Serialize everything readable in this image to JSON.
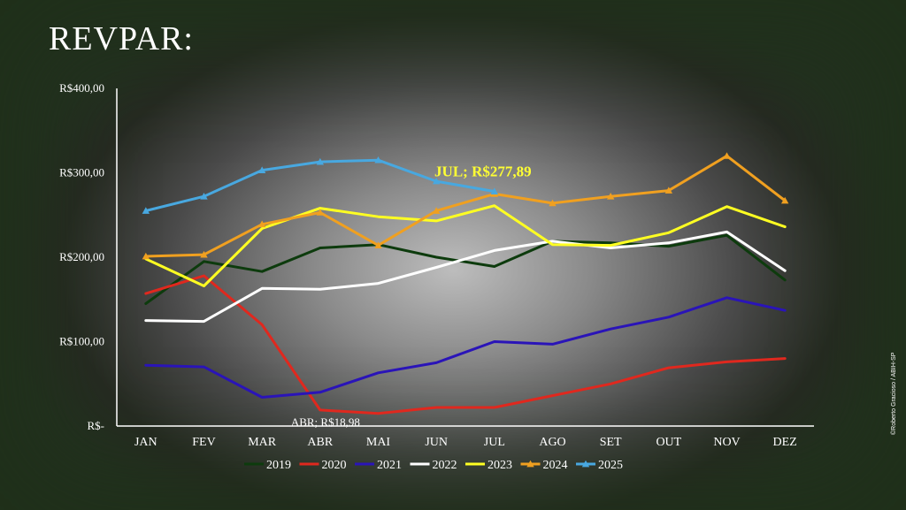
{
  "slide": {
    "title": "REVPAR:",
    "credit": "©Roberto Gracioso / ABIH-SP"
  },
  "chart_data": {
    "type": "line",
    "title": "",
    "xlabel": "",
    "ylabel": "",
    "categories": [
      "JAN",
      "FEV",
      "MAR",
      "ABR",
      "MAI",
      "JUN",
      "JUL",
      "AGO",
      "SET",
      "OUT",
      "NOV",
      "DEZ"
    ],
    "ylim": [
      0,
      400
    ],
    "yticks": [
      0,
      100,
      200,
      300,
      400
    ],
    "ytick_labels": [
      "R$-",
      "R$100,00",
      "R$200,00",
      "R$300,00",
      "R$400,00"
    ],
    "grid": false,
    "legend_position": "bottom",
    "series": [
      {
        "name": "2019",
        "color": "#0d3b0d",
        "marker": "none",
        "values": [
          145,
          195,
          183,
          211,
          215,
          200,
          189,
          219,
          217,
          213,
          226,
          173
        ]
      },
      {
        "name": "2020",
        "color": "#e0281e",
        "marker": "none",
        "values": [
          157,
          178,
          120,
          18.98,
          15,
          22,
          22,
          36,
          50,
          69,
          76,
          80
        ]
      },
      {
        "name": "2021",
        "color": "#2a14b8",
        "marker": "none",
        "values": [
          72,
          70,
          34,
          40,
          63,
          75,
          100,
          97,
          115,
          129,
          152,
          137
        ]
      },
      {
        "name": "2022",
        "color": "#ffffff",
        "marker": "none",
        "values": [
          125,
          124,
          163,
          162,
          169,
          188,
          208,
          219,
          211,
          217,
          230,
          184
        ]
      },
      {
        "name": "2023",
        "color": "#ffff22",
        "marker": "none",
        "values": [
          198,
          166,
          234,
          258,
          248,
          243,
          261,
          215,
          214,
          229,
          260,
          236
        ]
      },
      {
        "name": "2024",
        "color": "#f0a020",
        "marker": "triangle",
        "values": [
          201,
          203,
          239,
          253,
          214,
          255,
          275,
          264,
          272,
          279,
          320,
          267
        ]
      },
      {
        "name": "2025",
        "color": "#48a8e0",
        "marker": "triangle",
        "values": [
          255,
          272,
          303,
          313,
          315,
          290,
          277.89,
          null,
          null,
          null,
          null,
          null
        ]
      }
    ],
    "annotations": [
      {
        "category": "JUL",
        "series": "2025",
        "text": "JUL;  R$277,89",
        "style": "highlight"
      },
      {
        "category": "ABR",
        "series": "2020",
        "text": "ABR;  R$18,98",
        "style": "normal"
      }
    ]
  }
}
